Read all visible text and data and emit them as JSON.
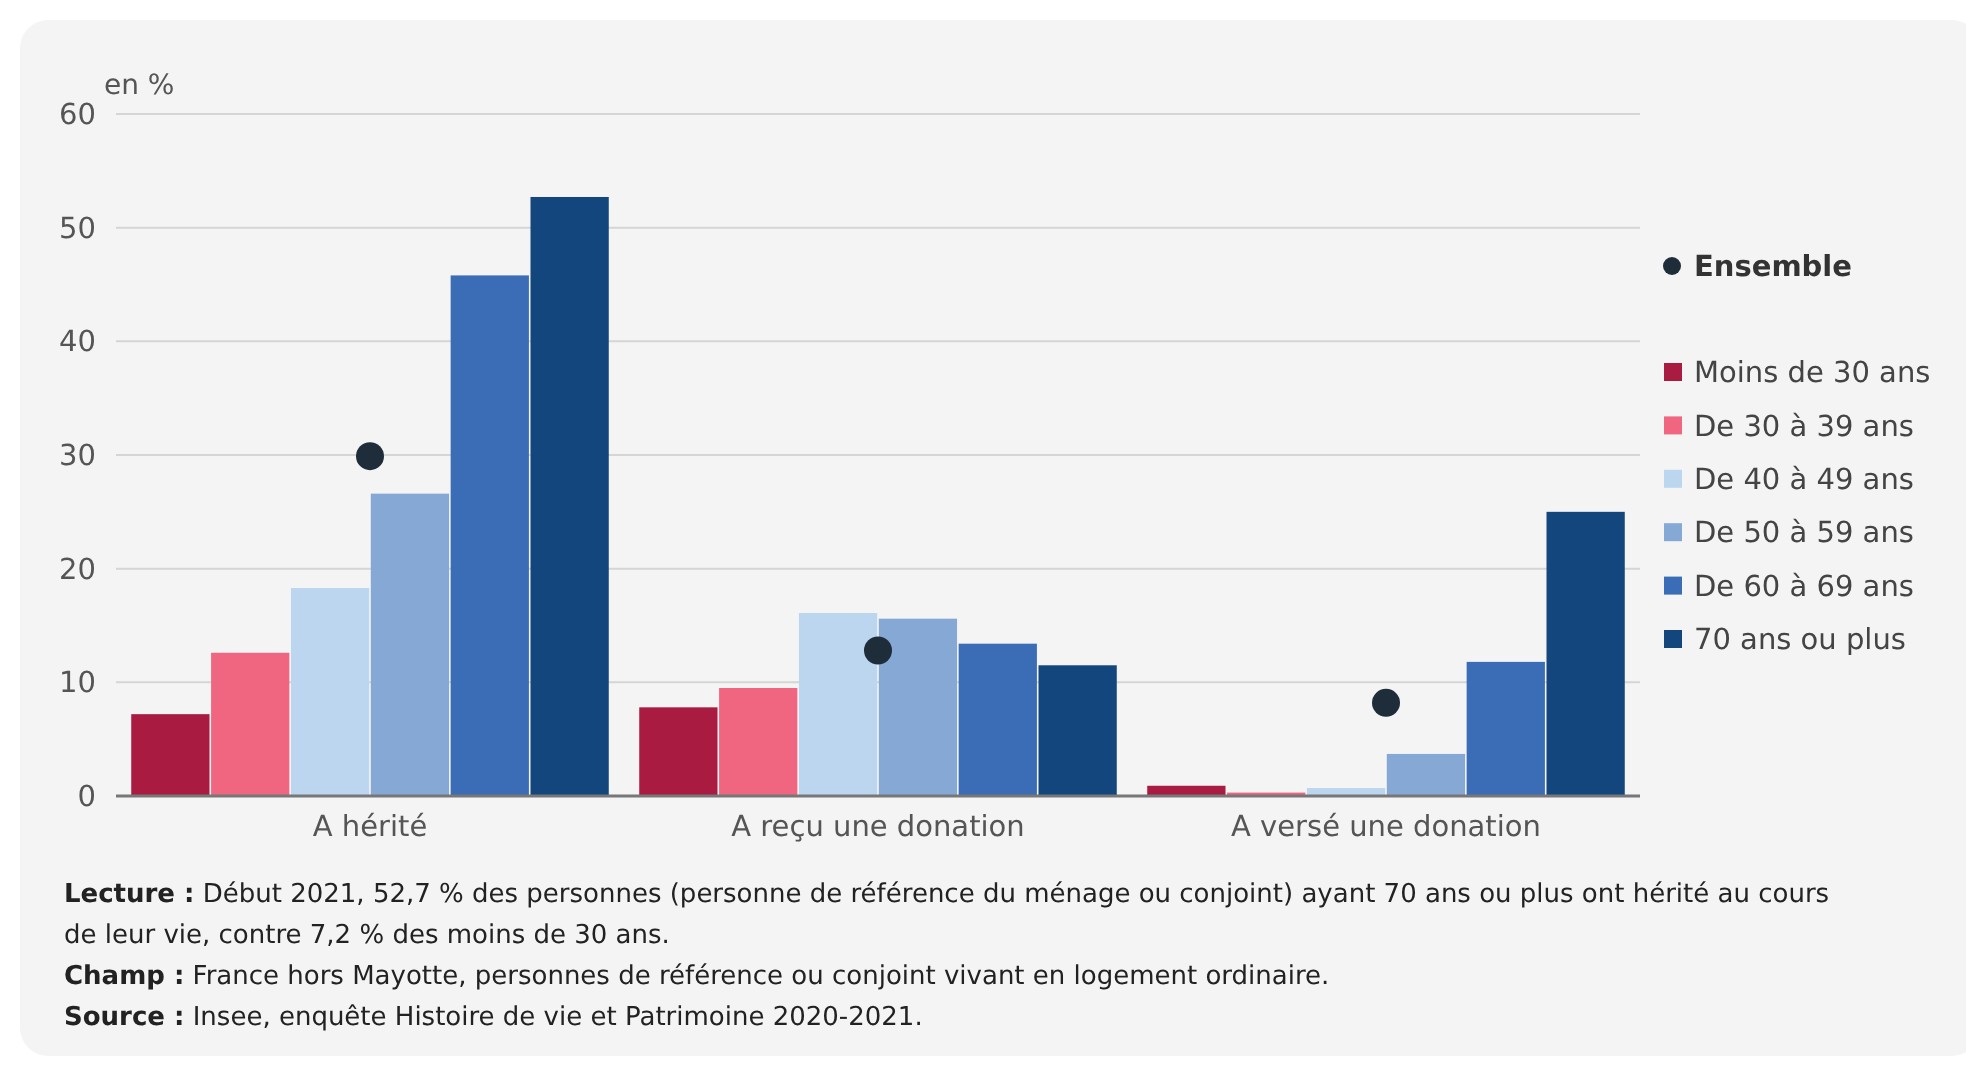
{
  "chart_data": {
    "type": "bar",
    "ylabel": "en %",
    "categories": [
      "A hérité",
      "A reçu une donation",
      "A versé une donation"
    ],
    "series": [
      {
        "name": "Ensemble",
        "type": "scatter",
        "color": "#1f2d3a",
        "values": [
          29.9,
          12.8,
          8.2
        ]
      },
      {
        "name": "Moins de 30 ans",
        "color": "#a91b40",
        "values": [
          7.2,
          7.8,
          0.9
        ]
      },
      {
        "name": "De 30 à 39 ans",
        "color": "#f06680",
        "values": [
          12.6,
          9.5,
          0.3
        ]
      },
      {
        "name": "De 40 à 49 ans",
        "color": "#bcd6ef",
        "values": [
          18.3,
          16.1,
          0.7
        ]
      },
      {
        "name": "De 50 à 59 ans",
        "color": "#85a8d5",
        "values": [
          26.6,
          15.6,
          3.7
        ]
      },
      {
        "name": "De 60 à 69 ans",
        "color": "#3b6db6",
        "values": [
          45.8,
          13.4,
          11.8
        ]
      },
      {
        "name": "70 ans ou plus",
        "color": "#12467c",
        "values": [
          52.7,
          11.5,
          25.0
        ]
      }
    ],
    "ylim": [
      0,
      60
    ],
    "yticks": [
      0,
      10,
      20,
      30,
      40,
      50,
      60
    ],
    "grid": "y",
    "legend": "right",
    "marker": "circle",
    "annotations": [
      "Lecture : Début 2021, 52,7 % des personnes (personne de référence du ménage ou conjoint) ayant 70 ans ou plus ont hérité au cours de leur vie, contre 7,2 % des moins de 30 ans.",
      "Champ : France hors Mayotte, personnes de référence ou conjoint vivant en logement ordinaire.",
      "Source : Insee, enquête Histoire de vie et Patrimoine 2020-2021."
    ]
  }
}
